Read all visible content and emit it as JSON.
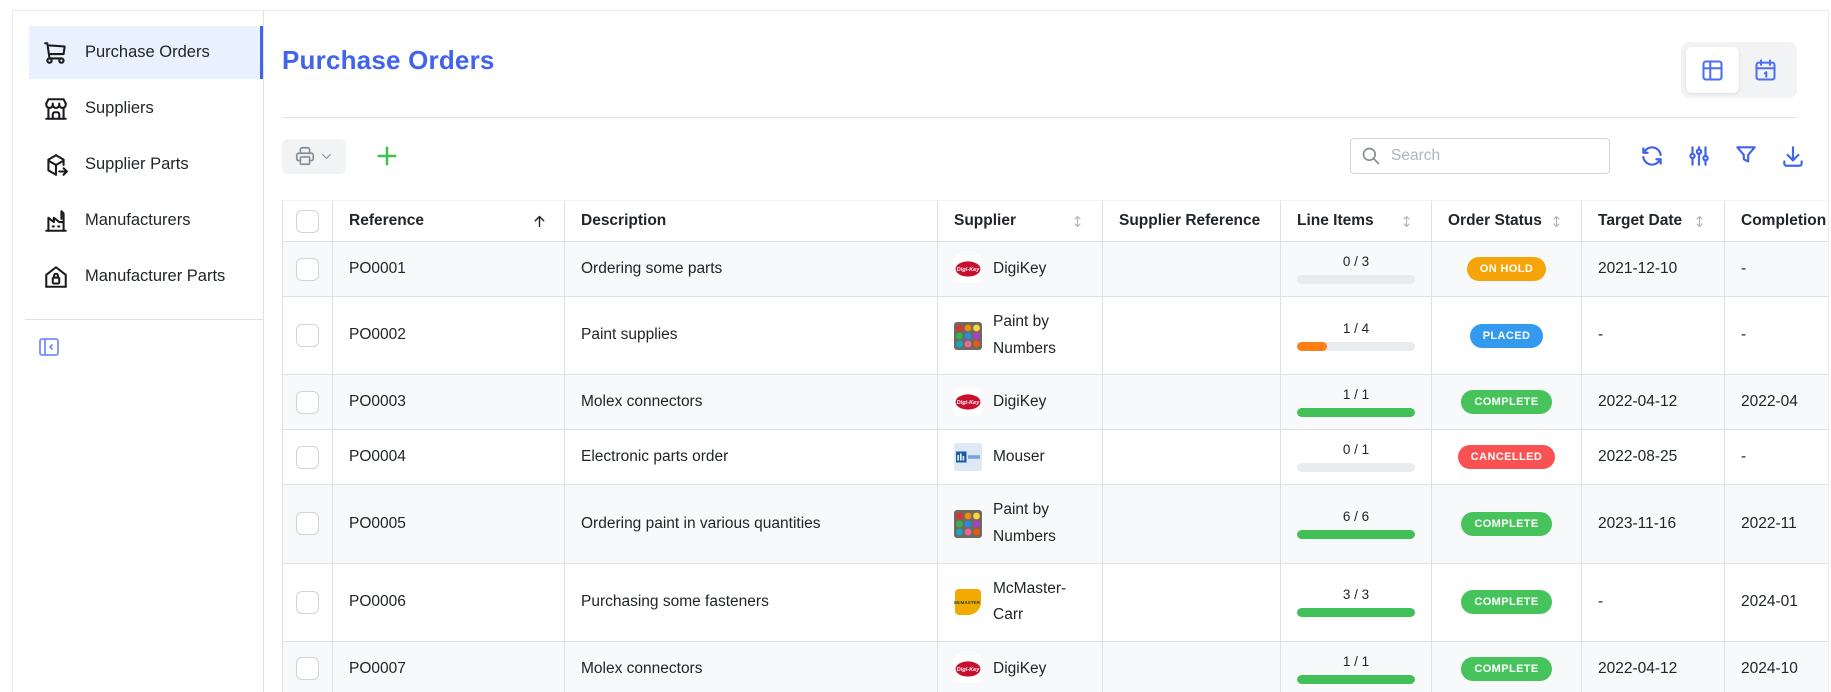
{
  "sidebar": {
    "items": [
      {
        "label": "Purchase Orders",
        "icon": "shopping-cart-icon",
        "active": true
      },
      {
        "label": "Suppliers",
        "icon": "store-icon",
        "active": false
      },
      {
        "label": "Supplier Parts",
        "icon": "package-export-icon",
        "active": false
      },
      {
        "label": "Manufacturers",
        "icon": "factory-icon",
        "active": false
      },
      {
        "label": "Manufacturer Parts",
        "icon": "building-lock-icon",
        "active": false
      }
    ]
  },
  "page": {
    "title": "Purchase Orders"
  },
  "view_toggle": {
    "options": [
      "table-view",
      "calendar-view"
    ],
    "selected": "table-view"
  },
  "toolbar": {
    "search_placeholder": "Search",
    "icons": [
      "printer-icon",
      "chevron-down-icon",
      "plus-icon",
      "refresh-icon",
      "adjustments-icon",
      "filter-icon",
      "download-icon"
    ]
  },
  "colors": {
    "accent_blue": "#4263eb",
    "green": "#40c057",
    "orange_progress": "#fd7e14",
    "badge_on_hold": "#f6a408",
    "badge_placed": "#339af0",
    "badge_complete": "#47c35c",
    "badge_cancelled": "#fa5252"
  },
  "table": {
    "columns": [
      {
        "id": "select",
        "label": "",
        "type": "checkbox",
        "sort": "none"
      },
      {
        "id": "reference",
        "label": "Reference",
        "sort": "asc"
      },
      {
        "id": "description",
        "label": "Description",
        "sort": "none"
      },
      {
        "id": "supplier",
        "label": "Supplier",
        "sort": "both"
      },
      {
        "id": "supplier_reference",
        "label": "Supplier Reference",
        "sort": "none"
      },
      {
        "id": "line_items",
        "label": "Line Items",
        "sort": "both"
      },
      {
        "id": "order_status",
        "label": "Order Status",
        "sort": "both"
      },
      {
        "id": "target_date",
        "label": "Target Date",
        "sort": "both"
      },
      {
        "id": "completion_date",
        "label": "Completion Date",
        "sort": "both"
      }
    ],
    "rows": [
      {
        "reference": "PO0001",
        "description": "Ordering some parts",
        "supplier": {
          "name": "DigiKey",
          "logo": "digikey-logo"
        },
        "supplier_reference": "",
        "line_items": {
          "label": "0 / 3",
          "percent": 0,
          "color": "#40c057"
        },
        "status": {
          "label": "ON HOLD",
          "color": "#f6a408"
        },
        "target_date": "2021-12-10",
        "completion_date": "-"
      },
      {
        "reference": "PO0002",
        "description": "Paint supplies",
        "supplier": {
          "name": "Paint by Numbers",
          "logo": "paint-logo"
        },
        "supplier_reference": "",
        "line_items": {
          "label": "1 / 4",
          "percent": 25,
          "color": "#fd7e14"
        },
        "status": {
          "label": "PLACED",
          "color": "#339af0"
        },
        "target_date": "-",
        "completion_date": "-"
      },
      {
        "reference": "PO0003",
        "description": "Molex connectors",
        "supplier": {
          "name": "DigiKey",
          "logo": "digikey-logo"
        },
        "supplier_reference": "",
        "line_items": {
          "label": "1 / 1",
          "percent": 100,
          "color": "#40c057"
        },
        "status": {
          "label": "COMPLETE",
          "color": "#47c35c"
        },
        "target_date": "2022-04-12",
        "completion_date": "2022-04"
      },
      {
        "reference": "PO0004",
        "description": "Electronic parts order",
        "supplier": {
          "name": "Mouser",
          "logo": "mouser-logo"
        },
        "supplier_reference": "",
        "line_items": {
          "label": "0 / 1",
          "percent": 0,
          "color": "#40c057"
        },
        "status": {
          "label": "CANCELLED",
          "color": "#fa5252"
        },
        "target_date": "2022-08-25",
        "completion_date": "-"
      },
      {
        "reference": "PO0005",
        "description": "Ordering paint in various quantities",
        "supplier": {
          "name": "Paint by Numbers",
          "logo": "paint-logo"
        },
        "supplier_reference": "",
        "line_items": {
          "label": "6 / 6",
          "percent": 100,
          "color": "#40c057"
        },
        "status": {
          "label": "COMPLETE",
          "color": "#47c35c"
        },
        "target_date": "2023-11-16",
        "completion_date": "2022-11"
      },
      {
        "reference": "PO0006",
        "description": "Purchasing some fasteners",
        "supplier": {
          "name": "McMaster-Carr",
          "logo": "mcmaster-logo"
        },
        "supplier_reference": "",
        "line_items": {
          "label": "3 / 3",
          "percent": 100,
          "color": "#40c057"
        },
        "status": {
          "label": "COMPLETE",
          "color": "#47c35c"
        },
        "target_date": "-",
        "completion_date": "2024-01"
      },
      {
        "reference": "PO0007",
        "description": "Molex connectors",
        "supplier": {
          "name": "DigiKey",
          "logo": "digikey-logo"
        },
        "supplier_reference": "",
        "line_items": {
          "label": "1 / 1",
          "percent": 100,
          "color": "#40c057"
        },
        "status": {
          "label": "COMPLETE",
          "color": "#47c35c"
        },
        "target_date": "2022-04-12",
        "completion_date": "2024-10"
      }
    ]
  }
}
